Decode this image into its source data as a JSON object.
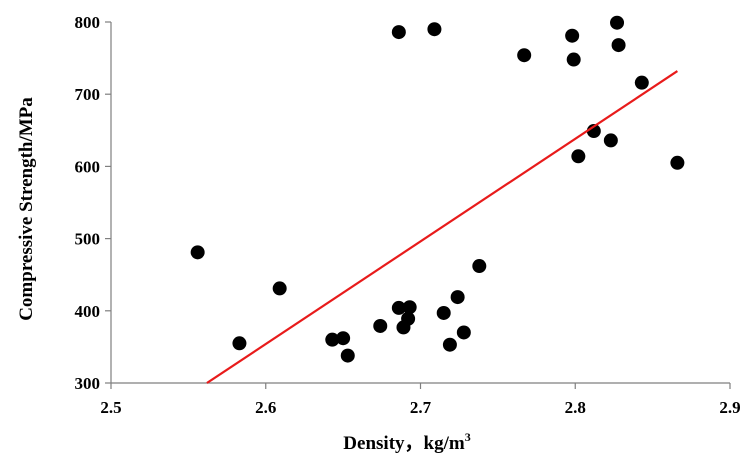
{
  "chart_data": {
    "type": "scatter",
    "title": "",
    "xlabel": "Density，kg/m",
    "xlabel_superscript": "3",
    "ylabel": "Compressive Strength/MPa",
    "xlim": [
      2.5,
      2.9
    ],
    "ylim": [
      300,
      800
    ],
    "xticks": [
      "2.5",
      "2.6",
      "2.7",
      "2.8",
      "2.9"
    ],
    "yticks": [
      "300",
      "400",
      "500",
      "600",
      "700",
      "800"
    ],
    "grid": false,
    "legend": "none",
    "marker_color": "#000000",
    "trendline_color": "#e81b1b",
    "trendline": {
      "x": [
        2.562,
        2.866
      ],
      "y": [
        300,
        732
      ]
    },
    "points": [
      {
        "x": 2.556,
        "y": 481
      },
      {
        "x": 2.583,
        "y": 355
      },
      {
        "x": 2.609,
        "y": 431
      },
      {
        "x": 2.643,
        "y": 360
      },
      {
        "x": 2.65,
        "y": 362
      },
      {
        "x": 2.653,
        "y": 338
      },
      {
        "x": 2.674,
        "y": 379
      },
      {
        "x": 2.686,
        "y": 404
      },
      {
        "x": 2.689,
        "y": 377
      },
      {
        "x": 2.692,
        "y": 389
      },
      {
        "x": 2.693,
        "y": 405
      },
      {
        "x": 2.686,
        "y": 786
      },
      {
        "x": 2.709,
        "y": 790
      },
      {
        "x": 2.715,
        "y": 397
      },
      {
        "x": 2.719,
        "y": 353
      },
      {
        "x": 2.724,
        "y": 419
      },
      {
        "x": 2.728,
        "y": 370
      },
      {
        "x": 2.738,
        "y": 462
      },
      {
        "x": 2.767,
        "y": 754
      },
      {
        "x": 2.798,
        "y": 781
      },
      {
        "x": 2.799,
        "y": 748
      },
      {
        "x": 2.802,
        "y": 614
      },
      {
        "x": 2.812,
        "y": 649
      },
      {
        "x": 2.823,
        "y": 636
      },
      {
        "x": 2.827,
        "y": 799
      },
      {
        "x": 2.828,
        "y": 768
      },
      {
        "x": 2.843,
        "y": 716
      },
      {
        "x": 2.866,
        "y": 605
      }
    ]
  }
}
